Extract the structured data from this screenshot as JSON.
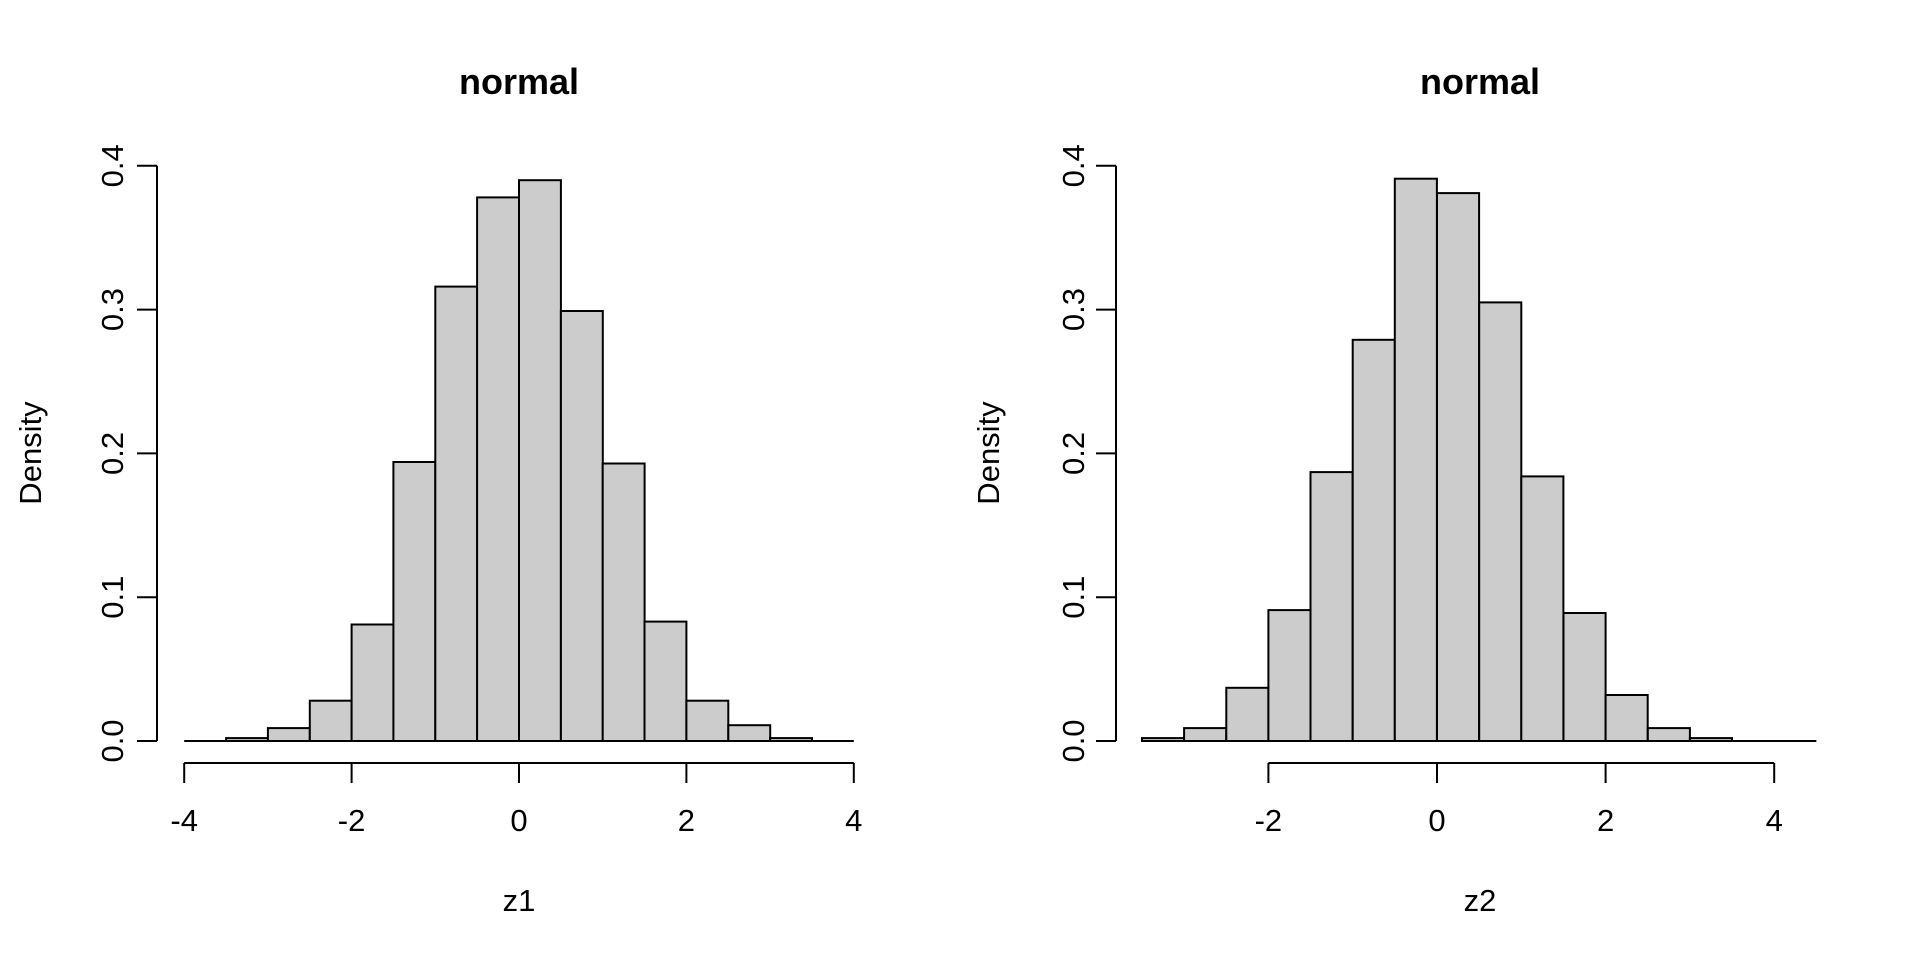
{
  "chart_data": [
    {
      "type": "bar",
      "subtype": "histogram",
      "title": "normal",
      "xlabel": "z1",
      "ylabel": "Density",
      "bin_start": -3.5,
      "bin_width": 0.5,
      "bin_edges": [
        -3.5,
        -3,
        -2.5,
        -2,
        -1.5,
        -1,
        -0.5,
        0,
        0.5,
        1,
        1.5,
        2,
        2.5,
        3,
        3.5
      ],
      "densities": [
        0.002,
        0.009,
        0.028,
        0.081,
        0.194,
        0.316,
        0.378,
        0.39,
        0.299,
        0.193,
        0.083,
        0.028,
        0.011,
        0.002
      ],
      "x_tick_values": [
        -4,
        -2,
        0,
        2,
        4
      ],
      "x_tick_labels": [
        "-4",
        "-2",
        "0",
        "2",
        "4"
      ],
      "y_tick_values": [
        0,
        0.1,
        0.2,
        0.3,
        0.4
      ],
      "y_tick_labels": [
        "0.0",
        "0.1",
        "0.2",
        "0.3",
        "0.4"
      ],
      "x_axis_span": [
        -4,
        4
      ],
      "baseline_span": [
        -4,
        4
      ],
      "xlim": [
        -4,
        4
      ],
      "ylim": [
        0,
        0.4
      ],
      "grid": "off",
      "bar_fill": "#CCCCCC",
      "bar_stroke": "#000000"
    },
    {
      "type": "bar",
      "subtype": "histogram",
      "title": "normal",
      "xlabel": "z2",
      "ylabel": "Density",
      "bin_start": -3.5,
      "bin_width": 0.5,
      "bin_edges": [
        -3.5,
        -3,
        -2.5,
        -2,
        -1.5,
        -1,
        -0.5,
        0,
        0.5,
        1,
        1.5,
        2,
        2.5,
        3,
        3.5
      ],
      "densities": [
        0.002,
        0.009,
        0.037,
        0.091,
        0.187,
        0.279,
        0.391,
        0.381,
        0.305,
        0.184,
        0.089,
        0.032,
        0.009,
        0.002
      ],
      "x_tick_values": [
        -2,
        0,
        2,
        4
      ],
      "x_tick_labels": [
        "-2",
        "0",
        "2",
        "4"
      ],
      "y_tick_values": [
        0,
        0.1,
        0.2,
        0.3,
        0.4
      ],
      "y_tick_labels": [
        "0.0",
        "0.1",
        "0.2",
        "0.3",
        "0.4"
      ],
      "x_axis_span": [
        -2,
        4
      ],
      "baseline_span": [
        -3.5,
        4.5
      ],
      "xlim": [
        -3.5,
        4.5
      ],
      "ylim": [
        0,
        0.4
      ],
      "grid": "off",
      "bar_fill": "#CCCCCC",
      "bar_stroke": "#000000"
    }
  ]
}
